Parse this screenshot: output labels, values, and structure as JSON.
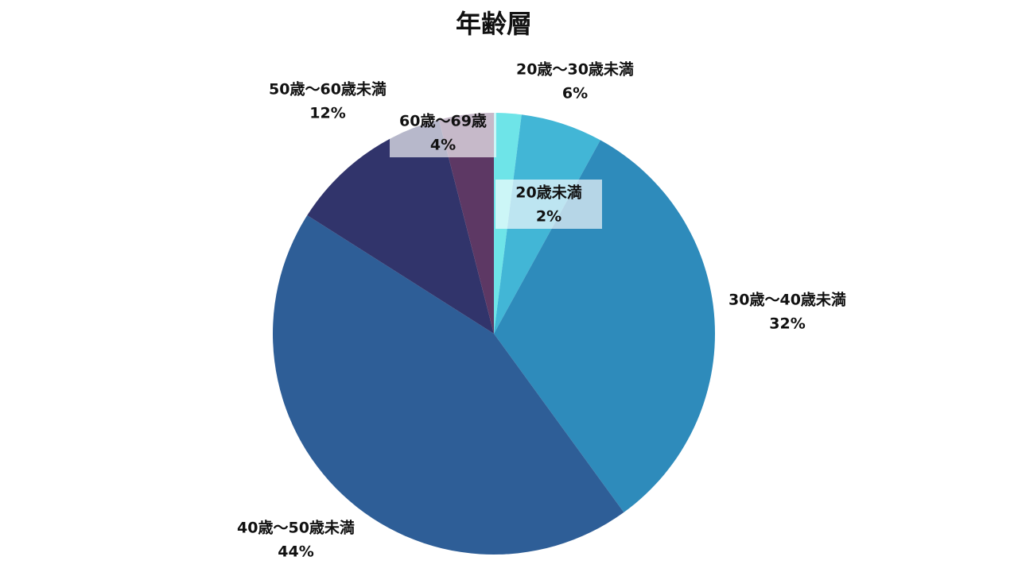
{
  "chart_data": {
    "type": "pie",
    "title": "年齢層",
    "categories": [
      "20歳未満",
      "20歳～30歳未満",
      "30歳～40歳未満",
      "40歳～50歳未満",
      "50歳～60歳未満",
      "60歳～69歳"
    ],
    "values": [
      2,
      6,
      32,
      44,
      12,
      4
    ],
    "value_labels": [
      "2%",
      "6%",
      "32%",
      "44%",
      "12%",
      "4%"
    ],
    "colors": [
      "#6ee4e8",
      "#42b6d6",
      "#2e8bbb",
      "#2e5e97",
      "#31346b",
      "#5d3864"
    ]
  }
}
